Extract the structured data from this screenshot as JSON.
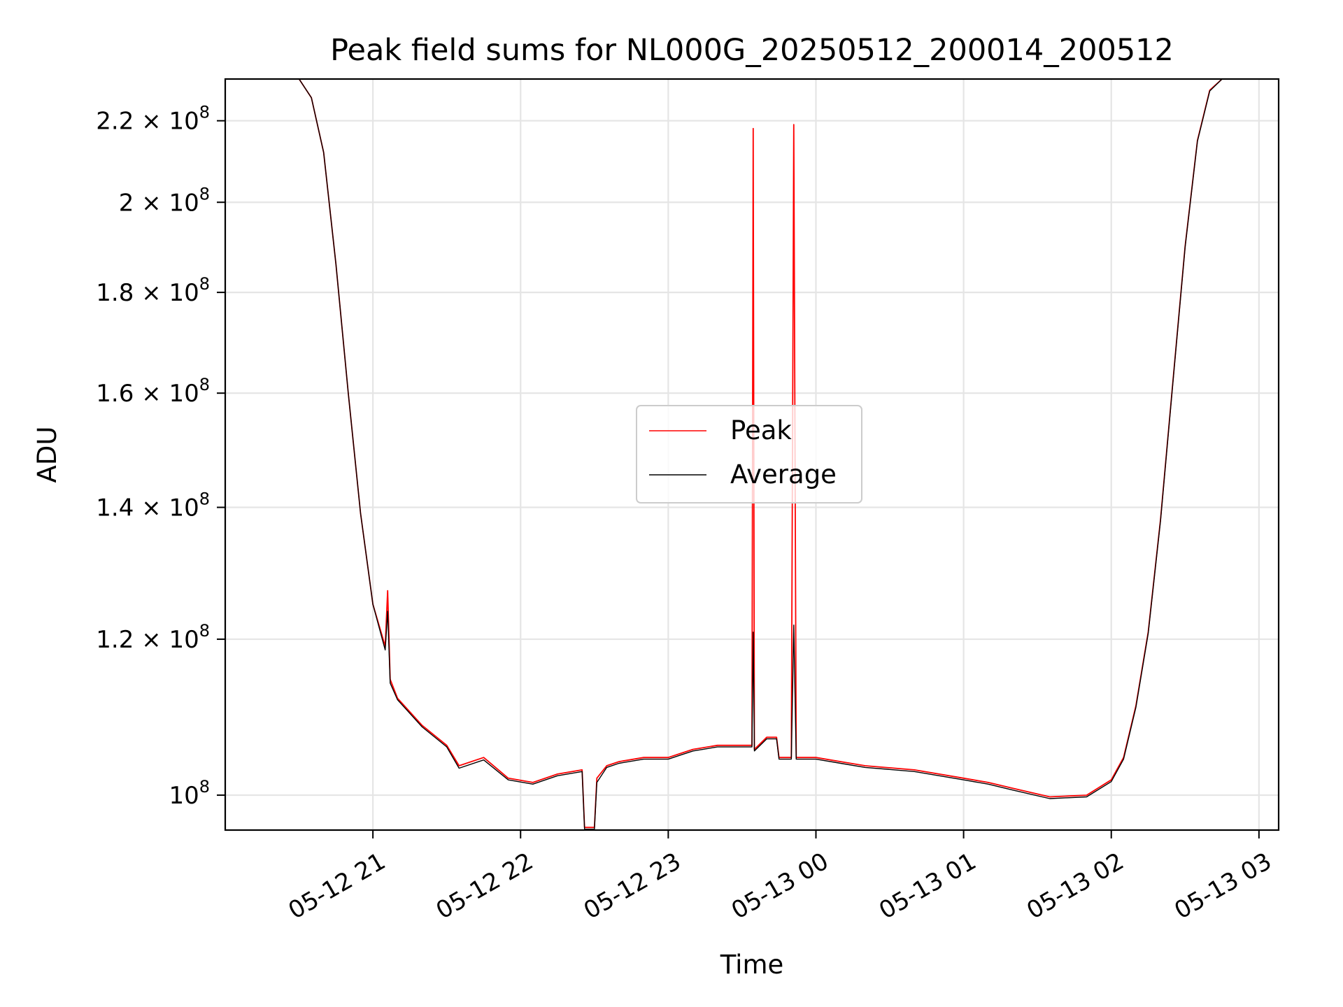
{
  "chart_data": {
    "type": "line",
    "title": "Peak field sums for NL000G_20250512_200014_200512",
    "xlabel": "Time",
    "ylabel": "ADU",
    "y_scale": "log",
    "ylim": [
      96000000,
      231000000
    ],
    "xlim": [
      "05-12 20:00",
      "05-13 03:08"
    ],
    "grid": true,
    "legend_position": "center",
    "x_ticks": [
      {
        "t": "05-12 21:00",
        "label": "05-12 21"
      },
      {
        "t": "05-12 22:00",
        "label": "05-12 22"
      },
      {
        "t": "05-12 23:00",
        "label": "05-12 23"
      },
      {
        "t": "05-13 00:00",
        "label": "05-13 00"
      },
      {
        "t": "05-13 01:00",
        "label": "05-13 01"
      },
      {
        "t": "05-13 02:00",
        "label": "05-13 02"
      },
      {
        "t": "05-13 03:00",
        "label": "05-13 03"
      }
    ],
    "y_ticks": [
      {
        "v": 100000000,
        "mant": "10",
        "exp": "8"
      },
      {
        "v": 120000000,
        "mant": "1.2 × 10",
        "exp": "8"
      },
      {
        "v": 140000000,
        "mant": "1.4 × 10",
        "exp": "8"
      },
      {
        "v": 160000000,
        "mant": "1.6 × 10",
        "exp": "8"
      },
      {
        "v": 180000000,
        "mant": "1.8 × 10",
        "exp": "8"
      },
      {
        "v": 200000000,
        "mant": "2 × 10",
        "exp": "8"
      },
      {
        "v": 220000000,
        "mant": "2.2 × 10",
        "exp": "8"
      }
    ],
    "series": [
      {
        "name": "Peak",
        "color": "#ff0000",
        "points": [
          [
            "05-12 20:00",
            231000000
          ],
          [
            "05-12 20:30",
            231000000
          ],
          [
            "05-12 20:35",
            226000000
          ],
          [
            "05-12 20:40",
            212000000
          ],
          [
            "05-12 20:45",
            186000000
          ],
          [
            "05-12 20:50",
            160000000
          ],
          [
            "05-12 20:55",
            139000000
          ],
          [
            "05-12 21:00",
            125000000
          ],
          [
            "05-12 21:05",
            119000000
          ],
          [
            "05-12 21:06",
            127000000
          ],
          [
            "05-12 21:07",
            114500000
          ],
          [
            "05-12 21:10",
            112000000
          ],
          [
            "05-12 21:20",
            108500000
          ],
          [
            "05-12 21:30",
            106000000
          ],
          [
            "05-12 21:35",
            103500000
          ],
          [
            "05-12 21:45",
            104500000
          ],
          [
            "05-12 21:55",
            102000000
          ],
          [
            "05-12 22:05",
            101500000
          ],
          [
            "05-12 22:15",
            102500000
          ],
          [
            "05-12 22:25",
            103000000
          ],
          [
            "05-12 22:26",
            96300000
          ],
          [
            "05-12 22:30",
            96300000
          ],
          [
            "05-12 22:31",
            102000000
          ],
          [
            "05-12 22:35",
            103500000
          ],
          [
            "05-12 22:40",
            104000000
          ],
          [
            "05-12 22:50",
            104500000
          ],
          [
            "05-12 23:00",
            104500000
          ],
          [
            "05-12 23:05",
            105000000
          ],
          [
            "05-12 23:10",
            105500000
          ],
          [
            "05-12 23:20",
            106000000
          ],
          [
            "05-12 23:30",
            106000000
          ],
          [
            "05-12 23:34",
            106000000
          ],
          [
            "05-12 23:34.5",
            218000000
          ],
          [
            "05-12 23:35",
            105500000
          ],
          [
            "05-12 23:40",
            107000000
          ],
          [
            "05-12 23:44",
            107000000
          ],
          [
            "05-12 23:45",
            104500000
          ],
          [
            "05-12 23:50",
            104500000
          ],
          [
            "05-12 23:51",
            219000000
          ],
          [
            "05-12 23:52",
            104500000
          ],
          [
            "05-13 00:00",
            104500000
          ],
          [
            "05-13 00:10",
            104000000
          ],
          [
            "05-13 00:20",
            103500000
          ],
          [
            "05-13 00:40",
            103000000
          ],
          [
            "05-13 01:00",
            102000000
          ],
          [
            "05-13 01:10",
            101500000
          ],
          [
            "05-13 01:20",
            100800000
          ],
          [
            "05-13 01:35",
            99800000
          ],
          [
            "05-13 01:50",
            100000000
          ],
          [
            "05-13 02:00",
            101800000
          ],
          [
            "05-13 02:05",
            104500000
          ],
          [
            "05-13 02:10",
            111000000
          ],
          [
            "05-13 02:15",
            121000000
          ],
          [
            "05-13 02:20",
            138000000
          ],
          [
            "05-13 02:25",
            162000000
          ],
          [
            "05-13 02:30",
            190000000
          ],
          [
            "05-13 02:35",
            215000000
          ],
          [
            "05-13 02:40",
            228000000
          ],
          [
            "05-13 02:45",
            231000000
          ],
          [
            "05-13 03:08",
            231000000
          ]
        ]
      },
      {
        "name": "Average",
        "color": "#000000",
        "points": [
          [
            "05-12 20:00",
            231000000
          ],
          [
            "05-12 20:30",
            231000000
          ],
          [
            "05-12 20:35",
            226000000
          ],
          [
            "05-12 20:40",
            212000000
          ],
          [
            "05-12 20:45",
            186000000
          ],
          [
            "05-12 20:50",
            160000000
          ],
          [
            "05-12 20:55",
            139000000
          ],
          [
            "05-12 21:00",
            125000000
          ],
          [
            "05-12 21:05",
            118500000
          ],
          [
            "05-12 21:06",
            124000000
          ],
          [
            "05-12 21:07",
            114000000
          ],
          [
            "05-12 21:10",
            111800000
          ],
          [
            "05-12 21:20",
            108300000
          ],
          [
            "05-12 21:30",
            105800000
          ],
          [
            "05-12 21:35",
            103200000
          ],
          [
            "05-12 21:45",
            104200000
          ],
          [
            "05-12 21:55",
            101800000
          ],
          [
            "05-12 22:05",
            101300000
          ],
          [
            "05-12 22:15",
            102300000
          ],
          [
            "05-12 22:25",
            102800000
          ],
          [
            "05-12 22:26",
            96100000
          ],
          [
            "05-12 22:30",
            96100000
          ],
          [
            "05-12 22:31",
            101500000
          ],
          [
            "05-12 22:35",
            103300000
          ],
          [
            "05-12 22:40",
            103800000
          ],
          [
            "05-12 22:50",
            104300000
          ],
          [
            "05-12 23:00",
            104300000
          ],
          [
            "05-12 23:05",
            104800000
          ],
          [
            "05-12 23:10",
            105300000
          ],
          [
            "05-12 23:20",
            105800000
          ],
          [
            "05-12 23:30",
            105800000
          ],
          [
            "05-12 23:34",
            105800000
          ],
          [
            "05-12 23:34.5",
            121000000
          ],
          [
            "05-12 23:35",
            105300000
          ],
          [
            "05-12 23:40",
            106800000
          ],
          [
            "05-12 23:44",
            106800000
          ],
          [
            "05-12 23:45",
            104300000
          ],
          [
            "05-12 23:50",
            104300000
          ],
          [
            "05-12 23:51",
            122000000
          ],
          [
            "05-12 23:52",
            104300000
          ],
          [
            "05-13 00:00",
            104300000
          ],
          [
            "05-13 00:10",
            103800000
          ],
          [
            "05-13 00:20",
            103300000
          ],
          [
            "05-13 00:40",
            102800000
          ],
          [
            "05-13 01:00",
            101800000
          ],
          [
            "05-13 01:10",
            101300000
          ],
          [
            "05-13 01:20",
            100600000
          ],
          [
            "05-13 01:35",
            99600000
          ],
          [
            "05-13 01:50",
            99800000
          ],
          [
            "05-13 02:00",
            101600000
          ],
          [
            "05-13 02:05",
            104300000
          ],
          [
            "05-13 02:10",
            110800000
          ],
          [
            "05-13 02:15",
            120800000
          ],
          [
            "05-13 02:20",
            137800000
          ],
          [
            "05-13 02:25",
            161800000
          ],
          [
            "05-13 02:30",
            189800000
          ],
          [
            "05-13 02:35",
            214800000
          ],
          [
            "05-13 02:40",
            227800000
          ],
          [
            "05-13 02:45",
            231000000
          ],
          [
            "05-13 03:08",
            231000000
          ]
        ]
      }
    ]
  }
}
